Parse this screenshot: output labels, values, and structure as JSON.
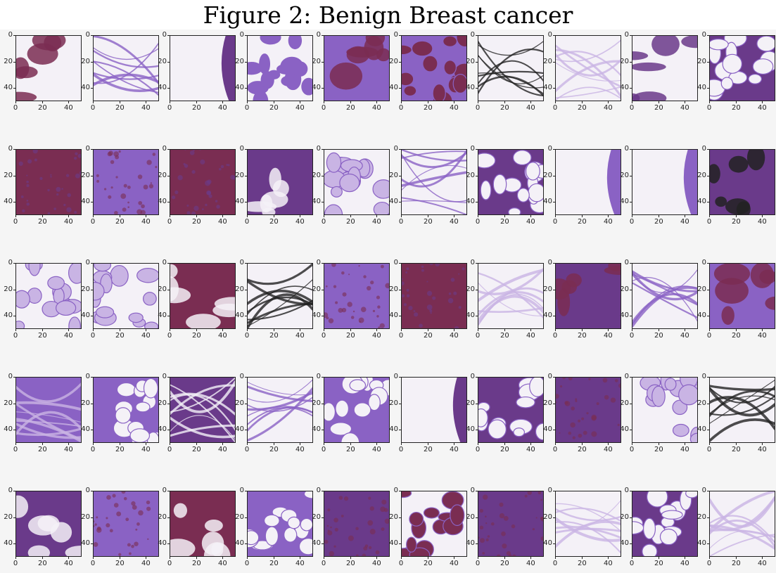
{
  "figure": {
    "title": "Figure 2: Benign Breast cancer"
  },
  "axes": {
    "x_ticks": [
      "0",
      "20",
      "40"
    ],
    "y_ticks": [
      "0",
      "20",
      "40"
    ],
    "range": [
      0,
      50
    ]
  },
  "grid": {
    "rows": 5,
    "cols": 10
  },
  "palette": {
    "white": "#f4f1f7",
    "light": "#c9b4e4",
    "mid": "#8a62c4",
    "dark": "#6a3a8a",
    "red": "#7a2d52",
    "ink": "#222222"
  },
  "panels": [
    {
      "kind": "mix",
      "bg": "white",
      "blob": "red"
    },
    {
      "kind": "fiber",
      "bg": "white",
      "blob": "mid"
    },
    {
      "kind": "edge",
      "bg": "white",
      "blob": "dark"
    },
    {
      "kind": "cells",
      "bg": "white",
      "blob": "mid"
    },
    {
      "kind": "mix",
      "bg": "mid",
      "blob": "red"
    },
    {
      "kind": "cells",
      "bg": "mid",
      "blob": "red"
    },
    {
      "kind": "fiber",
      "bg": "white",
      "blob": "ink"
    },
    {
      "kind": "fiber",
      "bg": "white",
      "blob": "light"
    },
    {
      "kind": "mix",
      "bg": "white",
      "blob": "dark"
    },
    {
      "kind": "cells",
      "bg": "dark",
      "blob": "white"
    },
    {
      "kind": "solid",
      "bg": "red",
      "blob": "dark"
    },
    {
      "kind": "solid",
      "bg": "mid",
      "blob": "red"
    },
    {
      "kind": "solid",
      "bg": "red",
      "blob": "dark"
    },
    {
      "kind": "mix",
      "bg": "dark",
      "blob": "white"
    },
    {
      "kind": "cells",
      "bg": "white",
      "blob": "light"
    },
    {
      "kind": "fiber",
      "bg": "white",
      "blob": "mid"
    },
    {
      "kind": "cells",
      "bg": "dark",
      "blob": "white"
    },
    {
      "kind": "edge",
      "bg": "white",
      "blob": "mid"
    },
    {
      "kind": "edge",
      "bg": "white",
      "blob": "mid"
    },
    {
      "kind": "mix",
      "bg": "dark",
      "blob": "ink"
    },
    {
      "kind": "cells",
      "bg": "white",
      "blob": "light"
    },
    {
      "kind": "cells",
      "bg": "white",
      "blob": "light"
    },
    {
      "kind": "mix",
      "bg": "red",
      "blob": "white"
    },
    {
      "kind": "fiber",
      "bg": "white",
      "blob": "ink"
    },
    {
      "kind": "solid",
      "bg": "mid",
      "blob": "red"
    },
    {
      "kind": "solid",
      "bg": "red",
      "blob": "dark"
    },
    {
      "kind": "fiber",
      "bg": "white",
      "blob": "light"
    },
    {
      "kind": "mix",
      "bg": "dark",
      "blob": "red"
    },
    {
      "kind": "fiber",
      "bg": "white",
      "blob": "mid"
    },
    {
      "kind": "mix",
      "bg": "mid",
      "blob": "red"
    },
    {
      "kind": "fiber",
      "bg": "mid",
      "blob": "light"
    },
    {
      "kind": "cells",
      "bg": "mid",
      "blob": "white"
    },
    {
      "kind": "fiber",
      "bg": "dark",
      "blob": "white"
    },
    {
      "kind": "fiber",
      "bg": "white",
      "blob": "mid"
    },
    {
      "kind": "cells",
      "bg": "mid",
      "blob": "white"
    },
    {
      "kind": "edge",
      "bg": "white",
      "blob": "dark"
    },
    {
      "kind": "cells",
      "bg": "dark",
      "blob": "white"
    },
    {
      "kind": "solid",
      "bg": "dark",
      "blob": "red"
    },
    {
      "kind": "cells",
      "bg": "white",
      "blob": "light"
    },
    {
      "kind": "fiber",
      "bg": "white",
      "blob": "ink"
    },
    {
      "kind": "mix",
      "bg": "dark",
      "blob": "white"
    },
    {
      "kind": "solid",
      "bg": "mid",
      "blob": "red"
    },
    {
      "kind": "mix",
      "bg": "red",
      "blob": "white"
    },
    {
      "kind": "cells",
      "bg": "mid",
      "blob": "white"
    },
    {
      "kind": "solid",
      "bg": "dark",
      "blob": "red"
    },
    {
      "kind": "cells",
      "bg": "white",
      "blob": "red"
    },
    {
      "kind": "solid",
      "bg": "dark",
      "blob": "red"
    },
    {
      "kind": "fiber",
      "bg": "white",
      "blob": "light"
    },
    {
      "kind": "cells",
      "bg": "dark",
      "blob": "white"
    },
    {
      "kind": "fiber",
      "bg": "white",
      "blob": "light"
    }
  ]
}
